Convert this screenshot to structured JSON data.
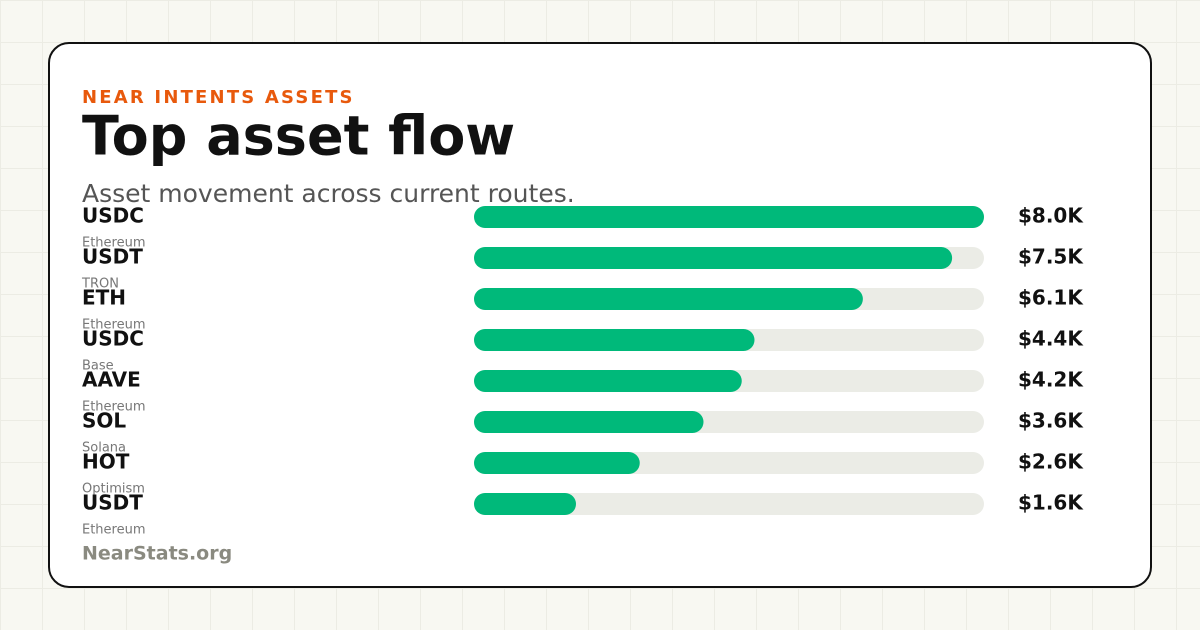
{
  "chart_data": {
    "type": "bar",
    "orientation": "horizontal",
    "eyebrow": "NEAR INTENTS ASSETS",
    "title": "Top asset flow",
    "subtitle": "Asset movement across current routes.",
    "categories": [
      "USDC",
      "USDT",
      "ETH",
      "USDC",
      "AAVE",
      "SOL",
      "HOT",
      "USDT"
    ],
    "chains": [
      "Ethereum",
      "TRON",
      "Ethereum",
      "Base",
      "Ethereum",
      "Solana",
      "Optimism",
      "Ethereum"
    ],
    "values": [
      8000,
      7500,
      6100,
      4400,
      4200,
      3600,
      2600,
      1600
    ],
    "value_labels": [
      "$8.0K",
      "$7.5K",
      "$6.1K",
      "$4.4K",
      "$4.2K",
      "$3.6K",
      "$2.6K",
      "$1.6K"
    ],
    "xlim": [
      0,
      8000
    ],
    "color": "#00b97a",
    "track_color": "#ebece6",
    "source": "NearStats.org"
  }
}
